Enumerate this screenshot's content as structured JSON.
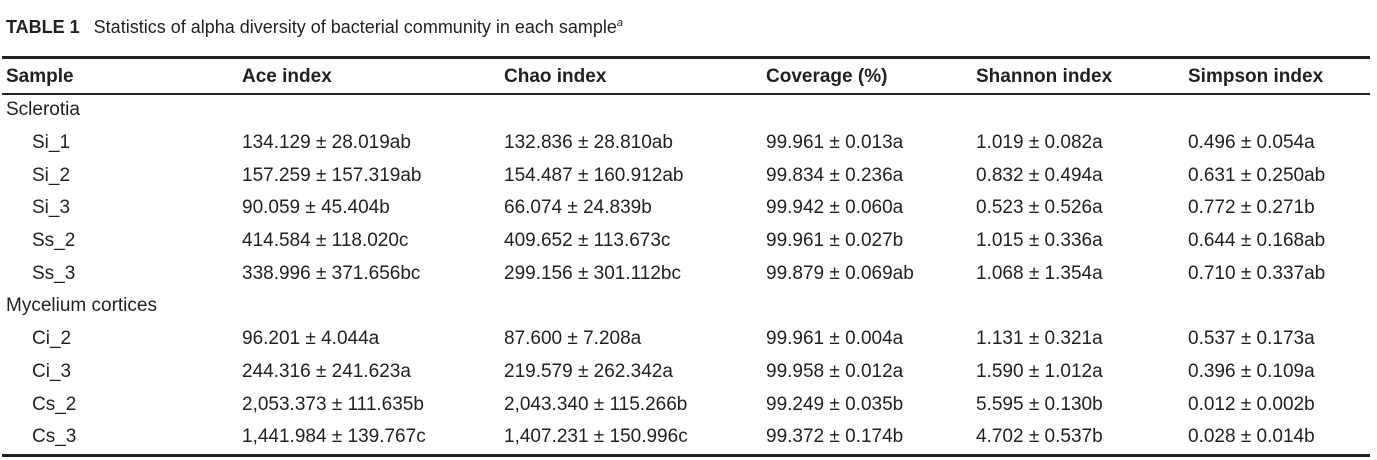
{
  "caption": {
    "label": "TABLE 1",
    "text": "Statistics of alpha diversity of bacterial community in each sample",
    "footnote_mark": "a"
  },
  "columns": [
    "Sample",
    "Ace index",
    "Chao index",
    "Coverage (%)",
    "Shannon index",
    "Simpson index"
  ],
  "groups": [
    {
      "name": "Sclerotia",
      "rows": [
        {
          "sample": "Si_1",
          "ace": "134.129 ± 28.019ab",
          "chao": "132.836 ± 28.810ab",
          "coverage": "99.961 ± 0.013a",
          "shannon": "1.019 ± 0.082a",
          "simpson": "0.496 ± 0.054a"
        },
        {
          "sample": "Si_2",
          "ace": "157.259 ± 157.319ab",
          "chao": "154.487 ± 160.912ab",
          "coverage": "99.834 ± 0.236a",
          "shannon": "0.832 ± 0.494a",
          "simpson": "0.631 ± 0.250ab"
        },
        {
          "sample": "Si_3",
          "ace": "90.059 ± 45.404b",
          "chao": "66.074 ± 24.839b",
          "coverage": "99.942 ± 0.060a",
          "shannon": "0.523 ± 0.526a",
          "simpson": "0.772 ± 0.271b"
        },
        {
          "sample": "Ss_2",
          "ace": "414.584 ± 118.020c",
          "chao": "409.652 ± 113.673c",
          "coverage": "99.961 ± 0.027b",
          "shannon": "1.015 ± 0.336a",
          "simpson": "0.644 ± 0.168ab"
        },
        {
          "sample": "Ss_3",
          "ace": "338.996 ± 371.656bc",
          "chao": "299.156 ± 301.112bc",
          "coverage": "99.879 ± 0.069ab",
          "shannon": "1.068 ± 1.354a",
          "simpson": "0.710 ± 0.337ab"
        }
      ]
    },
    {
      "name": "Mycelium cortices",
      "rows": [
        {
          "sample": "Ci_2",
          "ace": "96.201 ± 4.044a",
          "chao": "87.600 ± 7.208a",
          "coverage": "99.961 ± 0.004a",
          "shannon": "1.131 ± 0.321a",
          "simpson": "0.537 ± 0.173a"
        },
        {
          "sample": "Ci_3",
          "ace": "244.316 ± 241.623a",
          "chao": "219.579 ± 262.342a",
          "coverage": "99.958 ± 0.012a",
          "shannon": "1.590 ± 1.012a",
          "simpson": "0.396 ± 0.109a"
        },
        {
          "sample": "Cs_2",
          "ace": "2,053.373 ± 111.635b",
          "chao": "2,043.340 ± 115.266b",
          "coverage": "99.249 ± 0.035b",
          "shannon": "5.595 ± 0.130b",
          "simpson": "0.012 ± 0.002b"
        },
        {
          "sample": "Cs_3",
          "ace": "1,441.984 ± 139.767c",
          "chao": "1,407.231 ± 150.996c",
          "coverage": "99.372 ± 0.174b",
          "shannon": "4.702 ± 0.537b",
          "simpson": "0.028 ± 0.014b"
        }
      ]
    }
  ]
}
